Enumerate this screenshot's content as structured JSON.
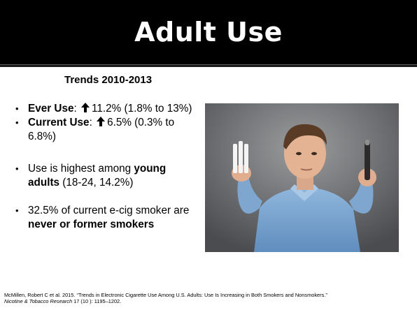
{
  "slide": {
    "title": "Adult Use",
    "subtitle": "Trends 2010-2013",
    "bullets": [
      {
        "bold": "Ever Use",
        "sep": ":",
        "value": "11.2%",
        "rest": " (1.8% to 13%)"
      },
      {
        "bold": "Current Use",
        "sep": ":",
        "value": "6.5%",
        "rest": " (0.3% to 6.8%)"
      },
      {
        "pre": "Use is highest among ",
        "bold": "young adults",
        "rest": " (18-24, 14.2%)"
      },
      {
        "pre": "32.5% of current e-cig smoker are ",
        "bold": "never or former smokers"
      }
    ],
    "bullet_glyph": "•",
    "arrow_icon": "up-arrow-icon",
    "photo_alt": "man-holding-cigarettes-and-e-cigarette-photo"
  },
  "citation": {
    "line1": "McMillen, Robert C et al. 2015. “Trends in Electronic Cigarette Use Among U.S. Adults: Use Is Increasing in Both Smokers and Nonsmokers.”",
    "journal": "Nicotine & Tobacco Research",
    "details": " 17 (10 ): 1195–1202."
  },
  "colors": {
    "title_bg": "#000000",
    "title_fg": "#ffffff",
    "text": "#000000"
  }
}
